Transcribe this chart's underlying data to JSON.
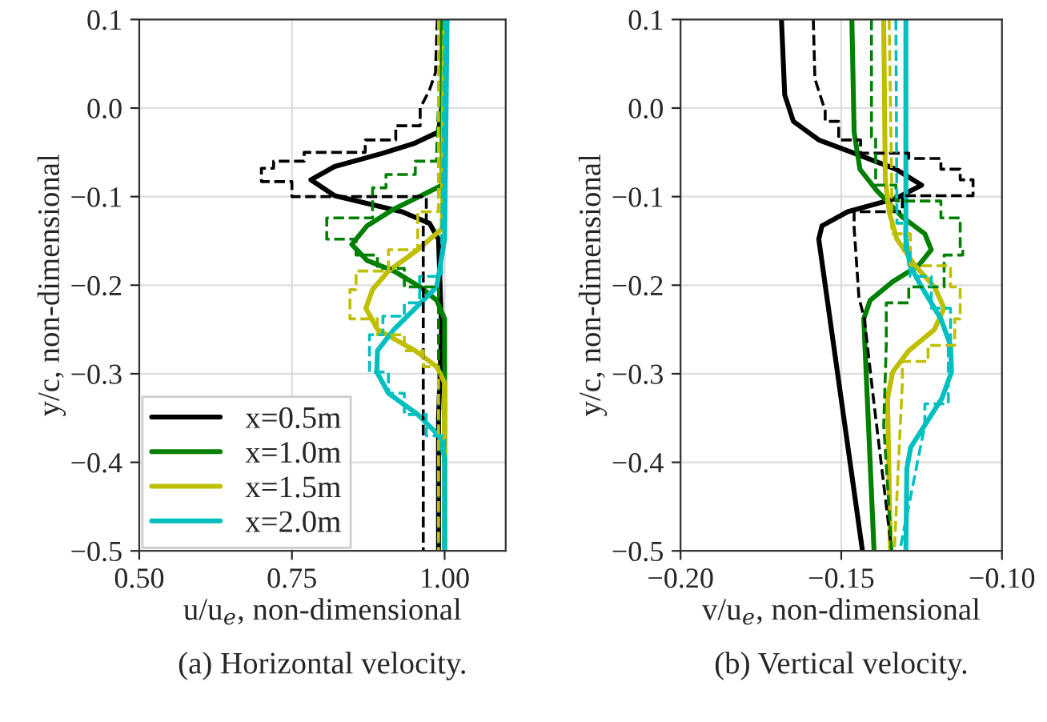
{
  "chart_data": [
    {
      "type": "line",
      "xlabel": "u/u$_{e}$, non-dimensional",
      "ylabel": "y/c, non-dimensional",
      "annotations": [
        "(a) Horizontal velocity."
      ],
      "xlim": [
        0.5,
        1.1
      ],
      "ylim": [
        -0.5,
        0.1
      ],
      "xticks": [
        {
          "value": 0.5,
          "label": "0.50"
        },
        {
          "value": 0.75,
          "label": "0.75"
        },
        {
          "value": 1.0,
          "label": "1.00"
        }
      ],
      "yticks": [
        {
          "value": -0.5,
          "label": "−0.5"
        },
        {
          "value": -0.4,
          "label": "−0.4"
        },
        {
          "value": -0.3,
          "label": "−0.3"
        },
        {
          "value": -0.2,
          "label": "−0.2"
        },
        {
          "value": -0.1,
          "label": "−0.1"
        },
        {
          "value": 0.0,
          "label": "0.0"
        },
        {
          "value": 0.1,
          "label": "0.1"
        }
      ],
      "grid": true,
      "legend": "bottom left",
      "series": [
        {
          "name": "x=0.5m",
          "color": "#000000",
          "line_style": "solid",
          "x": [
            1.0,
            0.995,
            0.99,
            0.95,
            0.899,
            0.82,
            0.781,
            0.82,
            0.93,
            0.975,
            0.99,
            0.995,
            0.99,
            0.99
          ],
          "values": [
            0.1,
            0.0,
            -0.027,
            -0.04,
            -0.051,
            -0.066,
            -0.081,
            -0.099,
            -0.117,
            -0.13,
            -0.148,
            -0.25,
            -0.35,
            -0.5
          ]
        },
        {
          "name": "x=1.0m",
          "color": "#008000",
          "line_style": "solid",
          "x": [
            0.996,
            0.996,
            0.97,
            0.917,
            0.873,
            0.848,
            0.873,
            0.917,
            0.96,
            0.987,
            1.0,
            1.0
          ],
          "values": [
            0.1,
            -0.087,
            -0.096,
            -0.114,
            -0.133,
            -0.154,
            -0.172,
            -0.184,
            -0.202,
            -0.217,
            -0.238,
            -0.5
          ]
        },
        {
          "name": "x=1.5m",
          "color": "#bfbf00",
          "line_style": "solid",
          "x": [
            1.0,
            0.996,
            0.956,
            0.908,
            0.882,
            0.871,
            0.89,
            0.952,
            0.987,
            1.0,
            1.0
          ],
          "values": [
            0.1,
            -0.136,
            -0.16,
            -0.184,
            -0.205,
            -0.226,
            -0.25,
            -0.274,
            -0.292,
            -0.31,
            -0.5
          ]
        },
        {
          "name": "x=2.0m",
          "color": "#00bfbf",
          "line_style": "solid",
          "x": [
            1.004,
            1.0,
            0.987,
            0.952,
            0.917,
            0.89,
            0.889,
            0.908,
            0.956,
            0.991,
            1.0,
            1.0
          ],
          "values": [
            0.1,
            -0.148,
            -0.202,
            -0.226,
            -0.25,
            -0.274,
            -0.298,
            -0.322,
            -0.346,
            -0.37,
            -0.395,
            -0.5
          ]
        },
        {
          "color": "#000000",
          "line_style": "dashed",
          "x": [
            0.988,
            0.985,
            0.975,
            0.96,
            0.96,
            0.92,
            0.92,
            0.87,
            0.87,
            0.77,
            0.77,
            0.72,
            0.72,
            0.7,
            0.7,
            0.75,
            0.75,
            0.97,
            0.97,
            0.965,
            0.965
          ],
          "values": [
            0.1,
            0.04,
            0.02,
            0.0,
            -0.02,
            -0.02,
            -0.036,
            -0.036,
            -0.05,
            -0.05,
            -0.06,
            -0.06,
            -0.068,
            -0.068,
            -0.083,
            -0.083,
            -0.1,
            -0.1,
            -0.13,
            -0.13,
            -0.5
          ]
        },
        {
          "color": "#008000",
          "line_style": "dashed",
          "x": [
            0.995,
            0.987,
            0.987,
            0.952,
            0.952,
            0.904,
            0.904,
            0.882,
            0.882,
            0.807,
            0.807,
            0.855,
            0.855,
            0.89,
            0.89,
            0.934,
            0.934,
            0.99,
            0.99
          ],
          "values": [
            0.1,
            -0.048,
            -0.06,
            -0.06,
            -0.075,
            -0.075,
            -0.09,
            -0.09,
            -0.124,
            -0.124,
            -0.148,
            -0.148,
            -0.166,
            -0.166,
            -0.181,
            -0.181,
            -0.202,
            -0.202,
            -0.5
          ]
        },
        {
          "color": "#bfbf00",
          "line_style": "dashed",
          "x": [
            0.99,
            0.99,
            0.956,
            0.956,
            0.908,
            0.908,
            0.855,
            0.855,
            0.845,
            0.845,
            0.89,
            0.89,
            0.934,
            0.934,
            0.965,
            0.965,
            0.99,
            0.99
          ],
          "values": [
            0.1,
            -0.117,
            -0.117,
            -0.16,
            -0.16,
            -0.184,
            -0.184,
            -0.205,
            -0.205,
            -0.238,
            -0.238,
            -0.256,
            -0.256,
            -0.274,
            -0.274,
            -0.292,
            -0.292,
            -0.5
          ]
        },
        {
          "color": "#00bfbf",
          "line_style": "dashed",
          "x": [
            1.0,
            0.995,
            0.995,
            0.959,
            0.959,
            0.934,
            0.934,
            0.899,
            0.899,
            0.877,
            0.877,
            0.908,
            0.908,
            0.934,
            0.934,
            0.97,
            0.97,
            1.0,
            1.0
          ],
          "values": [
            0.1,
            -0.166,
            -0.19,
            -0.19,
            -0.22,
            -0.22,
            -0.235,
            -0.235,
            -0.256,
            -0.256,
            -0.298,
            -0.298,
            -0.322,
            -0.322,
            -0.346,
            -0.346,
            -0.37,
            -0.37,
            -0.5
          ]
        }
      ]
    },
    {
      "type": "line",
      "xlabel": "v/u$_{e}$, non-dimensional",
      "ylabel": "y/c, non-dimensional",
      "annotations": [
        "(b) Vertical velocity."
      ],
      "xlim": [
        -0.2,
        -0.1
      ],
      "ylim": [
        -0.5,
        0.1
      ],
      "xticks": [
        {
          "value": -0.2,
          "label": "−0.20"
        },
        {
          "value": -0.15,
          "label": "−0.15"
        },
        {
          "value": -0.1,
          "label": "−0.10"
        }
      ],
      "yticks": [
        {
          "value": -0.5,
          "label": "−0.5"
        },
        {
          "value": -0.4,
          "label": "−0.4"
        },
        {
          "value": -0.3,
          "label": "−0.3"
        },
        {
          "value": -0.2,
          "label": "−0.2"
        },
        {
          "value": -0.1,
          "label": "−0.1"
        },
        {
          "value": 0.0,
          "label": "0.0"
        },
        {
          "value": 0.1,
          "label": "0.1"
        }
      ],
      "grid": true,
      "series": [
        {
          "color": "#000000",
          "line_style": "solid",
          "x": [
            -0.1686,
            -0.1676,
            -0.1649,
            -0.157,
            -0.146,
            -0.133,
            -0.125,
            -0.133,
            -0.148,
            -0.156,
            -0.157,
            -0.1434
          ],
          "values": [
            0.1,
            0.015,
            -0.015,
            -0.036,
            -0.051,
            -0.069,
            -0.087,
            -0.102,
            -0.117,
            -0.133,
            -0.148,
            -0.5
          ]
        },
        {
          "color": "#008000",
          "line_style": "solid",
          "x": [
            -0.1467,
            -0.146,
            -0.1442,
            -0.139,
            -0.131,
            -0.124,
            -0.122,
            -0.126,
            -0.134,
            -0.141,
            -0.143,
            -0.1398
          ],
          "values": [
            0.1,
            -0.027,
            -0.069,
            -0.093,
            -0.123,
            -0.142,
            -0.16,
            -0.178,
            -0.196,
            -0.217,
            -0.238,
            -0.5
          ]
        },
        {
          "color": "#bfbf00",
          "line_style": "solid",
          "x": [
            -0.1368,
            -0.1363,
            -0.1351,
            -0.1327,
            -0.127,
            -0.121,
            -0.118,
            -0.121,
            -0.129,
            -0.134,
            -0.1356,
            -0.1347
          ],
          "values": [
            0.1,
            -0.081,
            -0.117,
            -0.148,
            -0.178,
            -0.202,
            -0.226,
            -0.25,
            -0.274,
            -0.298,
            -0.328,
            -0.5
          ]
        },
        {
          "color": "#00bfbf",
          "line_style": "solid",
          "x": [
            -0.1299,
            -0.1299,
            -0.1286,
            -0.125,
            -0.119,
            -0.116,
            -0.1157,
            -0.1187,
            -0.124,
            -0.1284,
            -0.1296,
            -0.1299
          ],
          "values": [
            0.1,
            -0.148,
            -0.178,
            -0.202,
            -0.238,
            -0.268,
            -0.298,
            -0.328,
            -0.358,
            -0.383,
            -0.407,
            -0.5
          ]
        },
        {
          "color": "#000000",
          "line_style": "dashed",
          "x": [
            -0.1587,
            -0.1582,
            -0.155,
            -0.155,
            -0.1508,
            -0.1508,
            -0.144,
            -0.144,
            -0.129,
            -0.129,
            -0.119,
            -0.119,
            -0.113,
            -0.113,
            -0.109,
            -0.109,
            -0.131,
            -0.131,
            -0.146,
            -0.146,
            -0.1445,
            -0.1428,
            -0.14,
            -0.1343
          ],
          "values": [
            0.1,
            0.033,
            -0.003,
            -0.015,
            -0.015,
            -0.036,
            -0.036,
            -0.051,
            -0.051,
            -0.057,
            -0.057,
            -0.069,
            -0.069,
            -0.081,
            -0.081,
            -0.099,
            -0.099,
            -0.117,
            -0.117,
            -0.135,
            -0.214,
            -0.238,
            -0.328,
            -0.5
          ]
        },
        {
          "color": "#008000",
          "line_style": "dashed",
          "x": [
            -0.1406,
            -0.1406,
            -0.1393,
            -0.1393,
            -0.133,
            -0.133,
            -0.119,
            -0.119,
            -0.113,
            -0.113,
            -0.1122,
            -0.1122,
            -0.118,
            -0.118,
            -0.129,
            -0.129,
            -0.136,
            -0.136,
            -0.1368,
            -0.1343
          ],
          "values": [
            0.1,
            -0.033,
            -0.033,
            -0.087,
            -0.087,
            -0.105,
            -0.105,
            -0.124,
            -0.124,
            -0.16,
            -0.16,
            -0.166,
            -0.166,
            -0.202,
            -0.202,
            -0.22,
            -0.22,
            -0.268,
            -0.358,
            -0.5
          ]
        },
        {
          "color": "#bfbf00",
          "line_style": "dashed",
          "x": [
            -0.1351,
            -0.1343,
            -0.1343,
            -0.1285,
            -0.1285,
            -0.116,
            -0.116,
            -0.113,
            -0.113,
            -0.1147,
            -0.1147,
            -0.123,
            -0.123,
            -0.131,
            -0.131,
            -0.1335
          ],
          "values": [
            0.1,
            -0.087,
            -0.142,
            -0.142,
            -0.178,
            -0.178,
            -0.202,
            -0.202,
            -0.238,
            -0.238,
            -0.268,
            -0.268,
            -0.286,
            -0.286,
            -0.31,
            -0.5
          ]
        },
        {
          "color": "#00bfbf",
          "line_style": "dashed",
          "x": [
            -0.133,
            -0.1327,
            -0.1327,
            -0.1302,
            -0.1302,
            -0.1286,
            -0.1286,
            -0.122,
            -0.122,
            -0.116,
            -0.116,
            -0.1167,
            -0.1167,
            -0.124,
            -0.124,
            -0.1318
          ],
          "values": [
            0.1,
            -0.111,
            -0.13,
            -0.13,
            -0.16,
            -0.16,
            -0.19,
            -0.19,
            -0.226,
            -0.226,
            -0.262,
            -0.262,
            -0.334,
            -0.334,
            -0.358,
            -0.5
          ]
        }
      ]
    }
  ]
}
